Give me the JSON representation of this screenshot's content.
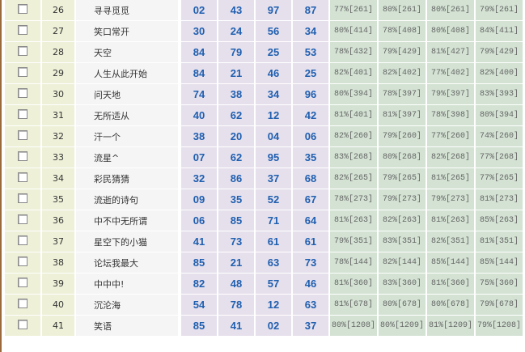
{
  "rows": [
    {
      "no": "26",
      "name": "寻寻觅觅",
      "nums": [
        "02",
        "43",
        "97",
        "87"
      ],
      "pcts": [
        "77%[261]",
        "80%[261]",
        "80%[261]",
        "79%[261]"
      ]
    },
    {
      "no": "27",
      "name": "笑口常开",
      "nums": [
        "30",
        "24",
        "56",
        "34"
      ],
      "pcts": [
        "80%[414]",
        "78%[408]",
        "80%[408]",
        "84%[411]"
      ]
    },
    {
      "no": "28",
      "name": "天空",
      "nums": [
        "84",
        "79",
        "25",
        "53"
      ],
      "pcts": [
        "78%[432]",
        "79%[429]",
        "81%[427]",
        "79%[429]"
      ]
    },
    {
      "no": "29",
      "name": "人生从此开始",
      "nums": [
        "84",
        "21",
        "46",
        "25"
      ],
      "pcts": [
        "82%[401]",
        "82%[402]",
        "77%[402]",
        "82%[400]"
      ]
    },
    {
      "no": "30",
      "name": "问天地",
      "nums": [
        "74",
        "38",
        "34",
        "96"
      ],
      "pcts": [
        "80%[394]",
        "78%[397]",
        "79%[397]",
        "83%[393]"
      ]
    },
    {
      "no": "31",
      "name": "无所适从",
      "nums": [
        "40",
        "62",
        "12",
        "42"
      ],
      "pcts": [
        "81%[401]",
        "81%[397]",
        "78%[398]",
        "80%[394]"
      ]
    },
    {
      "no": "32",
      "name": "汗一个",
      "nums": [
        "38",
        "20",
        "04",
        "06"
      ],
      "pcts": [
        "82%[260]",
        "79%[260]",
        "77%[260]",
        "74%[260]"
      ]
    },
    {
      "no": "33",
      "name": "流星^",
      "nums": [
        "07",
        "62",
        "95",
        "35"
      ],
      "pcts": [
        "83%[268]",
        "80%[268]",
        "82%[268]",
        "77%[268]"
      ]
    },
    {
      "no": "34",
      "name": "彩民猜猜",
      "nums": [
        "32",
        "86",
        "37",
        "68"
      ],
      "pcts": [
        "82%[265]",
        "79%[265]",
        "81%[265]",
        "77%[265]"
      ]
    },
    {
      "no": "35",
      "name": "流逝的诗句",
      "nums": [
        "09",
        "35",
        "52",
        "67"
      ],
      "pcts": [
        "78%[273]",
        "79%[273]",
        "79%[273]",
        "81%[273]"
      ]
    },
    {
      "no": "36",
      "name": "中不中无所谓",
      "nums": [
        "06",
        "85",
        "71",
        "64"
      ],
      "pcts": [
        "81%[263]",
        "82%[263]",
        "81%[263]",
        "85%[263]"
      ]
    },
    {
      "no": "37",
      "name": "星空下的小猫",
      "nums": [
        "41",
        "73",
        "61",
        "61"
      ],
      "pcts": [
        "79%[351]",
        "83%[351]",
        "82%[351]",
        "81%[351]"
      ]
    },
    {
      "no": "38",
      "name": "论坛我最大",
      "nums": [
        "85",
        "21",
        "63",
        "73"
      ],
      "pcts": [
        "78%[144]",
        "82%[144]",
        "85%[144]",
        "85%[144]"
      ]
    },
    {
      "no": "39",
      "name": "中中中!",
      "nums": [
        "82",
        "48",
        "57",
        "46"
      ],
      "pcts": [
        "81%[360]",
        "83%[360]",
        "81%[360]",
        "75%[360]"
      ]
    },
    {
      "no": "40",
      "name": "沉沦海",
      "nums": [
        "54",
        "78",
        "12",
        "63"
      ],
      "pcts": [
        "81%[678]",
        "80%[678]",
        "80%[678]",
        "79%[678]"
      ]
    },
    {
      "no": "41",
      "name": "笑语",
      "nums": [
        "85",
        "41",
        "02",
        "37"
      ],
      "pcts": [
        "80%[1208]",
        "80%[1209]",
        "81%[1209]",
        "79%[1208]"
      ]
    }
  ]
}
